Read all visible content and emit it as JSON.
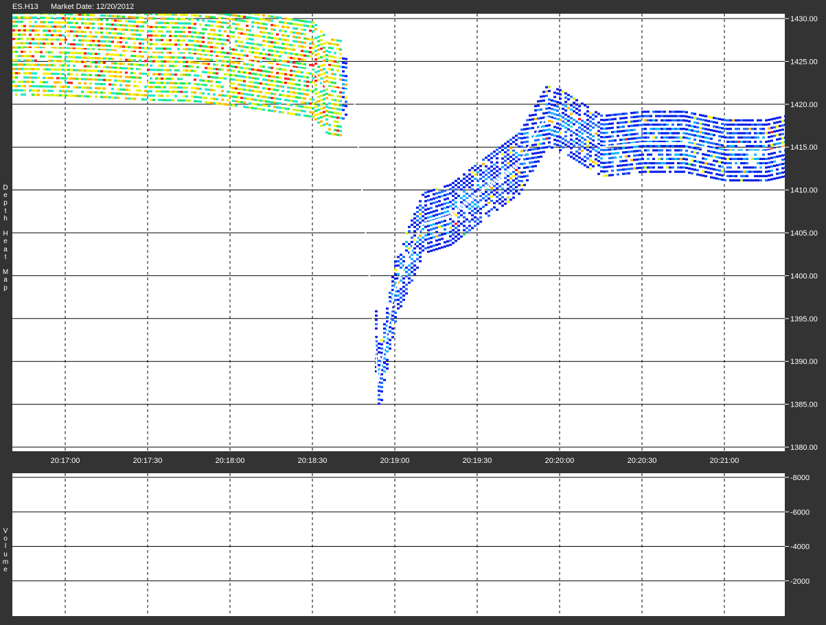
{
  "header": {
    "symbol": "ES.H13",
    "market_date": "Market Date: 12/20/2012"
  },
  "side_labels": {
    "depth": "D\ne\np\nt\nh\n\nH\ne\na\nt\n\nM\na\np",
    "volume": "V\no\nl\nu\nm\ne"
  },
  "colors": {
    "background": "#333333",
    "plot": "#ffffff",
    "price_line": "#ffffff",
    "heat_scale": [
      "#0a1fe6",
      "#1e6bff",
      "#0fb8ff",
      "#1ee8c8",
      "#20e860",
      "#c8f21e",
      "#fff200",
      "#ffb400",
      "#ff1a1a"
    ]
  },
  "chart_data": [
    {
      "type": "heatmap",
      "title": "Depth Heat Map",
      "x_ticks": [
        "20:17:00",
        "20:17:30",
        "20:18:00",
        "20:18:30",
        "20:19:00",
        "20:19:30",
        "20:20:00",
        "20:20:30",
        "20:21:00"
      ],
      "y_ticks": [
        "1430.00",
        "1425.00",
        "1420.00",
        "1415.00",
        "1410.00",
        "1405.00",
        "1400.00",
        "1395.00",
        "1390.00",
        "1385.00",
        "1380.00"
      ],
      "ylim": [
        1380,
        1430
      ],
      "grid": true,
      "price_path": [
        {
          "t": "20:16:45",
          "p": 1426.5
        },
        {
          "t": "20:17:00",
          "p": 1426.4
        },
        {
          "t": "20:17:15",
          "p": 1426.2
        },
        {
          "t": "20:17:30",
          "p": 1425.9
        },
        {
          "t": "20:17:45",
          "p": 1425.8
        },
        {
          "t": "20:18:00",
          "p": 1425.3
        },
        {
          "t": "20:18:15",
          "p": 1424.6
        },
        {
          "t": "20:18:30",
          "p": 1423.9
        },
        {
          "t": "20:18:35",
          "p": 1422.0
        },
        {
          "t": "20:18:45",
          "p": 1421.5
        },
        {
          "t": "20:18:54",
          "p": 1387.5
        },
        {
          "t": "20:19:00",
          "p": 1398.5
        },
        {
          "t": "20:19:10",
          "p": 1406.0
        },
        {
          "t": "20:19:20",
          "p": 1407.0
        },
        {
          "t": "20:19:30",
          "p": 1409.5
        },
        {
          "t": "20:19:45",
          "p": 1413.0
        },
        {
          "t": "20:19:55",
          "p": 1418.5
        },
        {
          "t": "20:20:00",
          "p": 1418.0
        },
        {
          "t": "20:20:15",
          "p": 1415.0
        },
        {
          "t": "20:20:30",
          "p": 1415.5
        },
        {
          "t": "20:20:45",
          "p": 1415.5
        },
        {
          "t": "20:21:00",
          "p": 1414.5
        },
        {
          "t": "20:21:15",
          "p": 1414.5
        },
        {
          "t": "20:21:22",
          "p": 1415.0
        }
      ]
    },
    {
      "type": "bar",
      "title": "Volume",
      "x_ticks": [
        "20:17:00",
        "20:17:30",
        "20:18:00",
        "20:18:30",
        "20:19:00",
        "20:19:30",
        "20:20:00",
        "20:20:30",
        "20:21:00"
      ],
      "y_ticks": [
        "-8000",
        "-6000",
        "-4000",
        "-2000"
      ],
      "ylim": [
        0,
        8000
      ],
      "grid": true,
      "series": []
    }
  ]
}
